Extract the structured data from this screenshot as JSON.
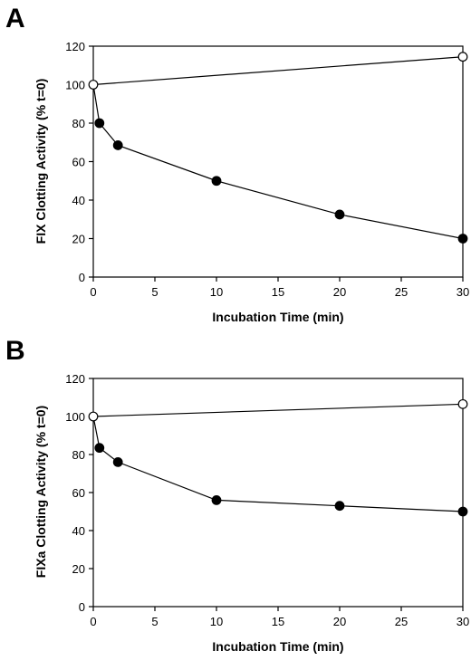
{
  "chart_data": [
    {
      "panel_label": "A",
      "type": "line",
      "xlabel": "Incubation Time (min)",
      "ylabel": "FIX Clotting Activity (% t=0)",
      "xlim": [
        0,
        30
      ],
      "ylim": [
        0,
        120
      ],
      "x_ticks": [
        0,
        5,
        10,
        15,
        20,
        25,
        30
      ],
      "y_ticks": [
        0,
        20,
        40,
        60,
        80,
        100,
        120
      ],
      "grid": false,
      "series": [
        {
          "marker": "open-circle",
          "x": [
            0,
            30
          ],
          "y": [
            100,
            114.5
          ]
        },
        {
          "marker": "filled-circle",
          "x": [
            0,
            0.5,
            2,
            10,
            20,
            30
          ],
          "y": [
            100,
            80,
            68.5,
            50,
            32.5,
            20
          ]
        }
      ]
    },
    {
      "panel_label": "B",
      "type": "line",
      "xlabel": "Incubation Time (min)",
      "ylabel": "FIXa Clotting Activity (% t=0)",
      "xlim": [
        0,
        30
      ],
      "ylim": [
        0,
        120
      ],
      "x_ticks": [
        0,
        5,
        10,
        15,
        20,
        25,
        30
      ],
      "y_ticks": [
        0,
        20,
        40,
        60,
        80,
        100,
        120
      ],
      "grid": false,
      "series": [
        {
          "marker": "open-circle",
          "x": [
            0,
            30
          ],
          "y": [
            100,
            106.5
          ]
        },
        {
          "marker": "filled-circle",
          "x": [
            0,
            0.5,
            2,
            10,
            20,
            30
          ],
          "y": [
            100,
            83.5,
            76,
            56,
            53,
            50
          ]
        }
      ]
    }
  ]
}
